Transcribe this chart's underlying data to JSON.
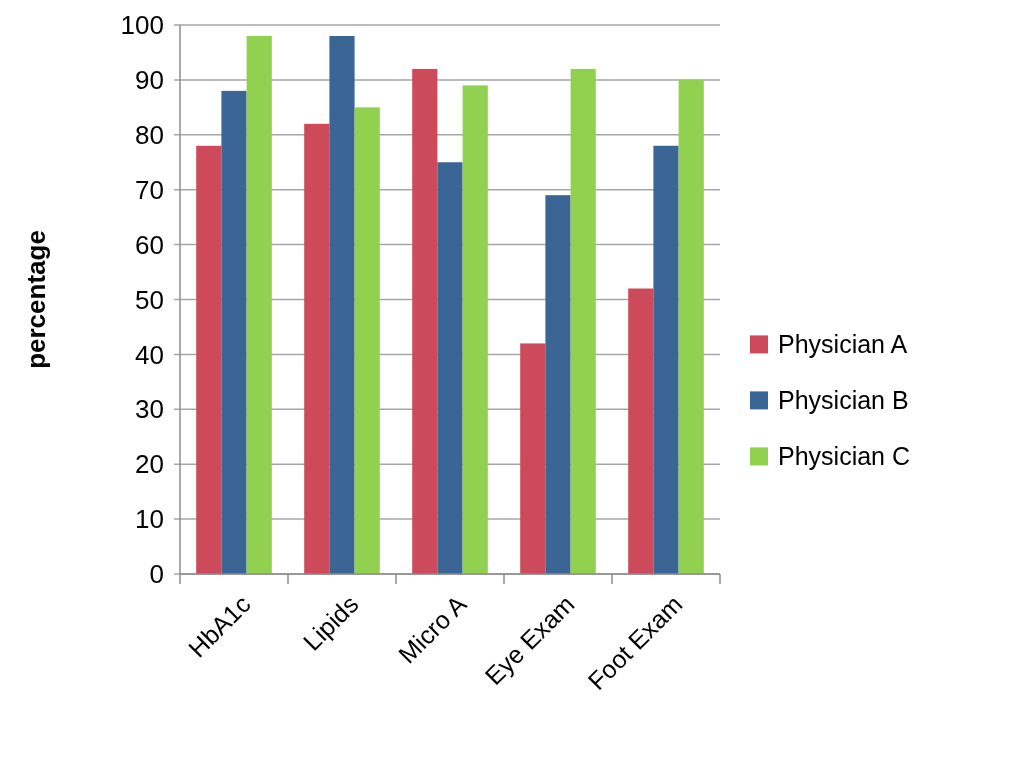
{
  "chart_data": {
    "type": "bar",
    "ylabel": "percentage",
    "categories": [
      "HbA1c",
      "Lipids",
      "Micro A",
      "Eye Exam",
      "Foot Exam"
    ],
    "series": [
      {
        "name": "Physician A",
        "color": "#cc4a5a",
        "values": [
          78,
          82,
          92,
          42,
          52
        ]
      },
      {
        "name": "Physician B",
        "color": "#3a6595",
        "values": [
          88,
          98,
          75,
          69,
          78
        ]
      },
      {
        "name": "Physician C",
        "color": "#92d050",
        "values": [
          98,
          85,
          89,
          92,
          90
        ]
      }
    ],
    "ylim": [
      0,
      100
    ],
    "yticks": [
      0,
      10,
      20,
      30,
      40,
      50,
      60,
      70,
      80,
      90,
      100
    ],
    "grid": "y",
    "legend": "right"
  }
}
